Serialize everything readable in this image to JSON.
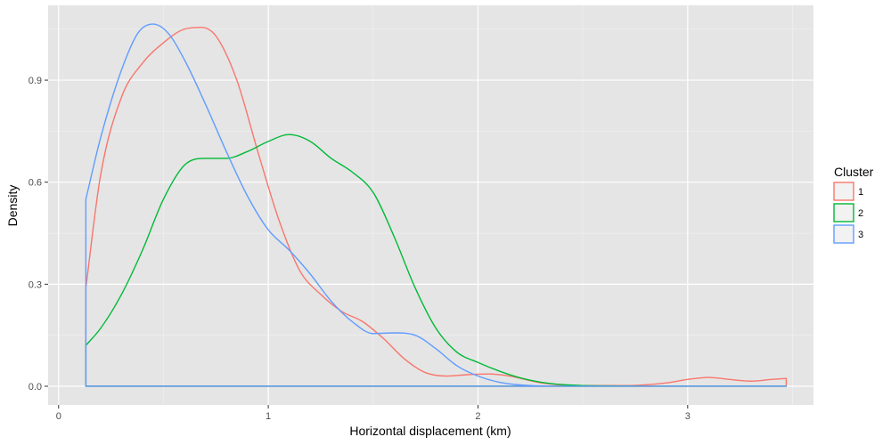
{
  "chart_data": {
    "type": "area",
    "subtype": "density",
    "title": "",
    "xlabel": "Horizontal displacement (km)",
    "ylabel": "Density",
    "xlim": [
      -0.05,
      3.6
    ],
    "ylim": [
      -0.055,
      1.12
    ],
    "x_ticks": [
      0,
      1,
      2,
      3
    ],
    "x_tick_labels": [
      "0",
      "1",
      "2",
      "3"
    ],
    "y_ticks": [
      0.0,
      0.3,
      0.6,
      0.9
    ],
    "y_tick_labels": [
      "0.0",
      "0.3",
      "0.6",
      "0.9"
    ],
    "x_minor": [
      0.5,
      1.5,
      2.5,
      3.5
    ],
    "y_minor": [
      0.15,
      0.45,
      0.75,
      1.05
    ],
    "grid": true,
    "panel_background": "#e5e5e5",
    "fill": "none",
    "support": [
      0.13,
      3.47
    ],
    "legend": {
      "title": "Cluster",
      "position": "right"
    },
    "series": [
      {
        "name": "1",
        "color": "#F8766D",
        "x": [
          0.13,
          0.2,
          0.3,
          0.4,
          0.5,
          0.6,
          0.68,
          0.75,
          0.85,
          0.95,
          1.05,
          1.15,
          1.25,
          1.35,
          1.45,
          1.55,
          1.65,
          1.75,
          1.85,
          1.95,
          2.05,
          2.15,
          2.3,
          2.5,
          2.7,
          2.9,
          3.0,
          3.1,
          3.2,
          3.3,
          3.4,
          3.47
        ],
        "y": [
          0.29,
          0.62,
          0.85,
          0.95,
          1.01,
          1.05,
          1.055,
          1.03,
          0.9,
          0.69,
          0.49,
          0.34,
          0.27,
          0.22,
          0.19,
          0.14,
          0.08,
          0.04,
          0.03,
          0.034,
          0.036,
          0.03,
          0.01,
          0.002,
          0.002,
          0.01,
          0.02,
          0.026,
          0.02,
          0.015,
          0.02,
          0.023
        ]
      },
      {
        "name": "2",
        "color": "#00BA38",
        "x": [
          0.13,
          0.2,
          0.3,
          0.4,
          0.5,
          0.6,
          0.7,
          0.8,
          0.9,
          1.0,
          1.1,
          1.2,
          1.3,
          1.4,
          1.5,
          1.6,
          1.7,
          1.8,
          1.9,
          2.0,
          2.1,
          2.2,
          2.3,
          2.4,
          2.5,
          2.6,
          2.8,
          3.0,
          3.2,
          3.47
        ],
        "y": [
          0.12,
          0.17,
          0.27,
          0.4,
          0.55,
          0.65,
          0.67,
          0.67,
          0.69,
          0.72,
          0.74,
          0.72,
          0.67,
          0.63,
          0.57,
          0.44,
          0.29,
          0.17,
          0.1,
          0.07,
          0.045,
          0.025,
          0.012,
          0.005,
          0.002,
          0.001,
          0.0,
          0.0,
          0.0,
          0.0
        ]
      },
      {
        "name": "3",
        "color": "#619CFF",
        "x": [
          0.13,
          0.2,
          0.3,
          0.38,
          0.45,
          0.52,
          0.6,
          0.7,
          0.8,
          0.9,
          1.0,
          1.1,
          1.2,
          1.3,
          1.4,
          1.5,
          1.6,
          1.7,
          1.8,
          1.9,
          2.0,
          2.1,
          2.2,
          2.3,
          2.5,
          2.7,
          3.0,
          3.47
        ],
        "y": [
          0.55,
          0.73,
          0.93,
          1.04,
          1.065,
          1.04,
          0.96,
          0.83,
          0.69,
          0.56,
          0.46,
          0.4,
          0.33,
          0.25,
          0.19,
          0.155,
          0.157,
          0.15,
          0.11,
          0.06,
          0.03,
          0.012,
          0.004,
          0.001,
          0.0,
          0.0,
          0.0,
          0.0
        ]
      }
    ]
  }
}
